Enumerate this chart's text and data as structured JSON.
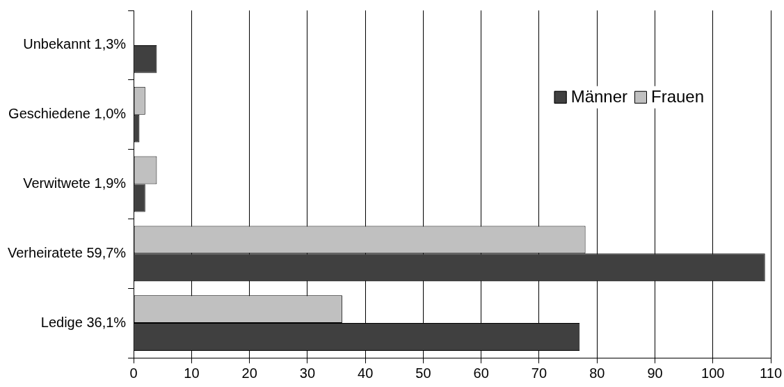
{
  "chart_data": {
    "type": "bar",
    "orientation": "horizontal",
    "categories": [
      "Unbekannt 1,3%",
      "Geschiedene 1,0%",
      "Verwitwete 1,9%",
      "Verheiratete 59,7%",
      "Ledige 36,1%"
    ],
    "series": [
      {
        "name": "Männer",
        "color": "#404040",
        "values": [
          4,
          1,
          2,
          109,
          77
        ]
      },
      {
        "name": "Frauen",
        "color": "#c0c0c0",
        "values": [
          null,
          2,
          4,
          78,
          36
        ]
      }
    ],
    "xlim": [
      0,
      110
    ],
    "xticks": [
      0,
      10,
      20,
      30,
      40,
      50,
      60,
      70,
      80,
      90,
      100,
      110
    ],
    "grid": "x",
    "legend": "top right"
  }
}
